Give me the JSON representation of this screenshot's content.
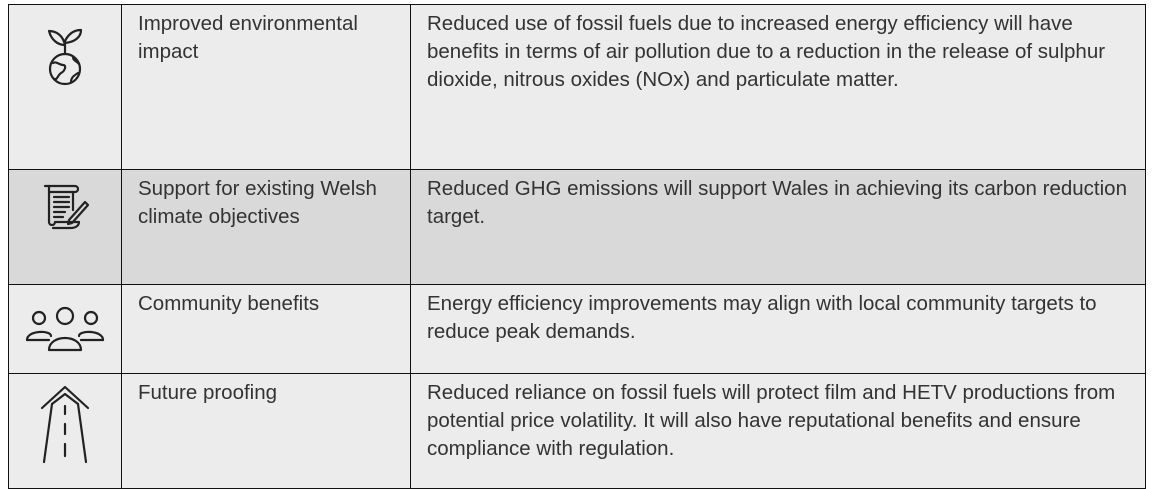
{
  "table": {
    "rows": [
      {
        "label": "Improved environmental impact",
        "description": "Reduced use of fossil fuels due to increased energy efficiency will have benefits in terms of air pollution due to a reduction in the release of sulphur dioxide, nitrous oxides (NOx) and particulate matter."
      },
      {
        "label": "Support for existing Welsh climate objectives",
        "description": "Reduced GHG emissions will support Wales in achieving its carbon reduction target."
      },
      {
        "label": "Community benefits",
        "description": "Energy efficiency improvements may align with local community targets to reduce peak demands."
      },
      {
        "label": "Future proofing",
        "description": "Reduced reliance on fossil fuels will protect film and HETV productions from potential price volatility. It will also have reputational benefits and ensure compliance with regulation."
      }
    ]
  }
}
